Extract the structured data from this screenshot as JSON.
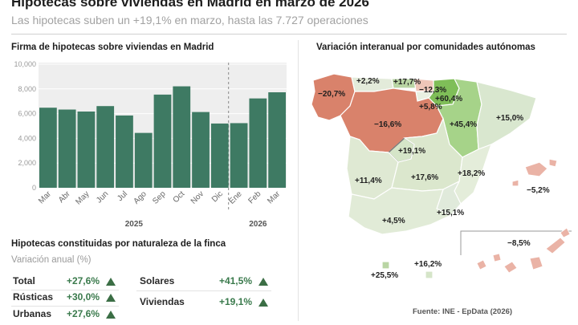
{
  "header": {
    "title": "Hipotecas sobre viviendas en Madrid en marzo de 2026",
    "subtitle": "Las hipotecas suben un +19,1% en marzo, hasta las 7.727 operaciones"
  },
  "chart_data": [
    {
      "type": "bar",
      "title": "Firma de hipotecas sobre viviendas en Madrid",
      "categories": [
        "Mar",
        "Abr",
        "May",
        "Jun",
        "Jul",
        "Ago",
        "Sep",
        "Oct",
        "Nov",
        "Dic",
        "Ene",
        "Feb",
        "Mar"
      ],
      "values": [
        6480,
        6330,
        6170,
        6610,
        5850,
        4440,
        7540,
        8210,
        6130,
        5200,
        5230,
        7230,
        7727
      ],
      "ylim": [
        0,
        10000
      ],
      "yticks": [
        "0",
        "2,000",
        "4,000",
        "6,000",
        "8,000",
        "10,000"
      ],
      "year_labels": [
        "2025",
        "2026"
      ],
      "grid": true,
      "bar_color": "#3e7a63",
      "band_color": "#eeeeee"
    },
    {
      "type": "table",
      "title": "Hipotecas constituidas por naturaleza de la finca",
      "subtitle": "Variación anual (%)",
      "rows_left": [
        {
          "label": "Total",
          "value": "+27,6%"
        },
        {
          "label": "Rústicas",
          "value": "+30,0%"
        },
        {
          "label": "Urbanas",
          "value": "+27,6%"
        }
      ],
      "rows_right": [
        {
          "label": "Solares",
          "value": "+41,5%"
        },
        {
          "label": "Viviendas",
          "value": "+19,1%"
        }
      ],
      "trend_color": "#3b6e45"
    },
    {
      "type": "map",
      "title": "Variación interanual por comunidades autónomas",
      "labels": [
        "+2,2%",
        "+17,7%",
        "−12,3%",
        "−20,7%",
        "+60,4%",
        "+5,8%",
        "+45,4%",
        "+15,0%",
        "−16,6%",
        "+19,1%",
        "+18,2%",
        "+11,4%",
        "+17,6%",
        "−5,2%",
        "+4,5%",
        "+15,1%",
        "−8,5%",
        "+16,2%",
        "+25,5%"
      ],
      "source": "Fuente: INE - EpData (2026)"
    }
  ]
}
